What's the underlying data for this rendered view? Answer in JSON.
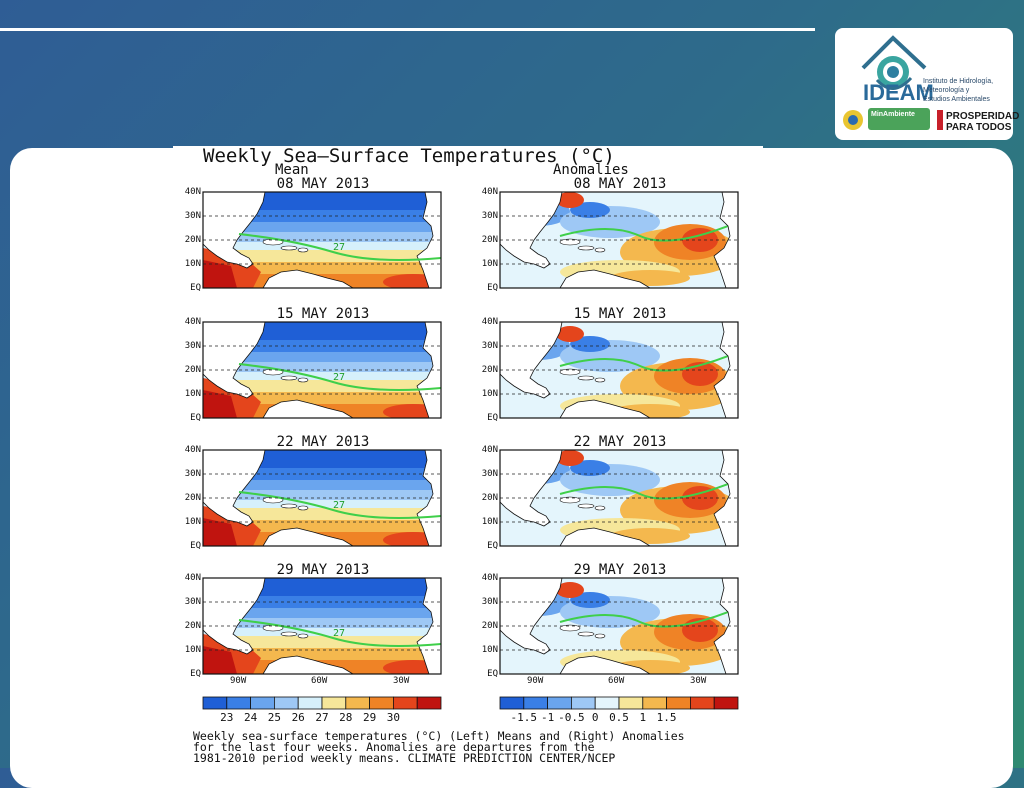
{
  "header": {
    "logo": {
      "name": "IDEAM",
      "institute_lines": [
        "Instituto de Hidrología,",
        "Meteorología y",
        "Estudios Ambientales"
      ],
      "ministry": "MinAmbiente",
      "slogan_line1": "PROSPERIDAD",
      "slogan_line2": "PARA TODOS"
    }
  },
  "figure": {
    "title": "Weekly Sea—Surface Temperatures (°C)",
    "left_heading": "Mean",
    "right_heading": "Anomalies",
    "dates": [
      "08 MAY 2013",
      "15 MAY 2013",
      "22 MAY 2013",
      "29 MAY 2013"
    ],
    "lat_labels": [
      "40N",
      "30N",
      "20N",
      "10N",
      "EQ"
    ],
    "lon_labels": [
      "90W",
      "60W",
      "30W"
    ],
    "contour_label": "27",
    "mean_colorbar": {
      "ticks": [
        "23",
        "24",
        "25",
        "26",
        "27",
        "28",
        "29",
        "30"
      ],
      "colors": [
        "#1f5fd6",
        "#3a7fe6",
        "#6aa5ee",
        "#9ec8f5",
        "#d6f0fb",
        "#f6e79a",
        "#f4b84e",
        "#ef8326",
        "#e4451c",
        "#c0140f"
      ]
    },
    "anom_colorbar": {
      "ticks": [
        "-1.5",
        "-1",
        "-0.5",
        "0",
        "0.5",
        "1",
        "1.5"
      ],
      "colors": [
        "#1f5fd6",
        "#3a7fe6",
        "#6aa5ee",
        "#9ec8f5",
        "#e4f5fc",
        "#f6e79a",
        "#f4b84e",
        "#ef8326",
        "#e4451c",
        "#c0140f"
      ]
    },
    "caption": [
      "Weekly sea-surface temperatures (°C) (Left) Means and (Right) Anomalies",
      "for the last four weeks. Anomalies are departures from the",
      "1981-2010 period weekly means. CLIMATE PREDICTION CENTER/NCEP"
    ]
  },
  "colors": {
    "background_start": "#2f5d95",
    "background_end": "#2f8a72",
    "contour": "#3fcf4a",
    "land": "#ffffff"
  }
}
